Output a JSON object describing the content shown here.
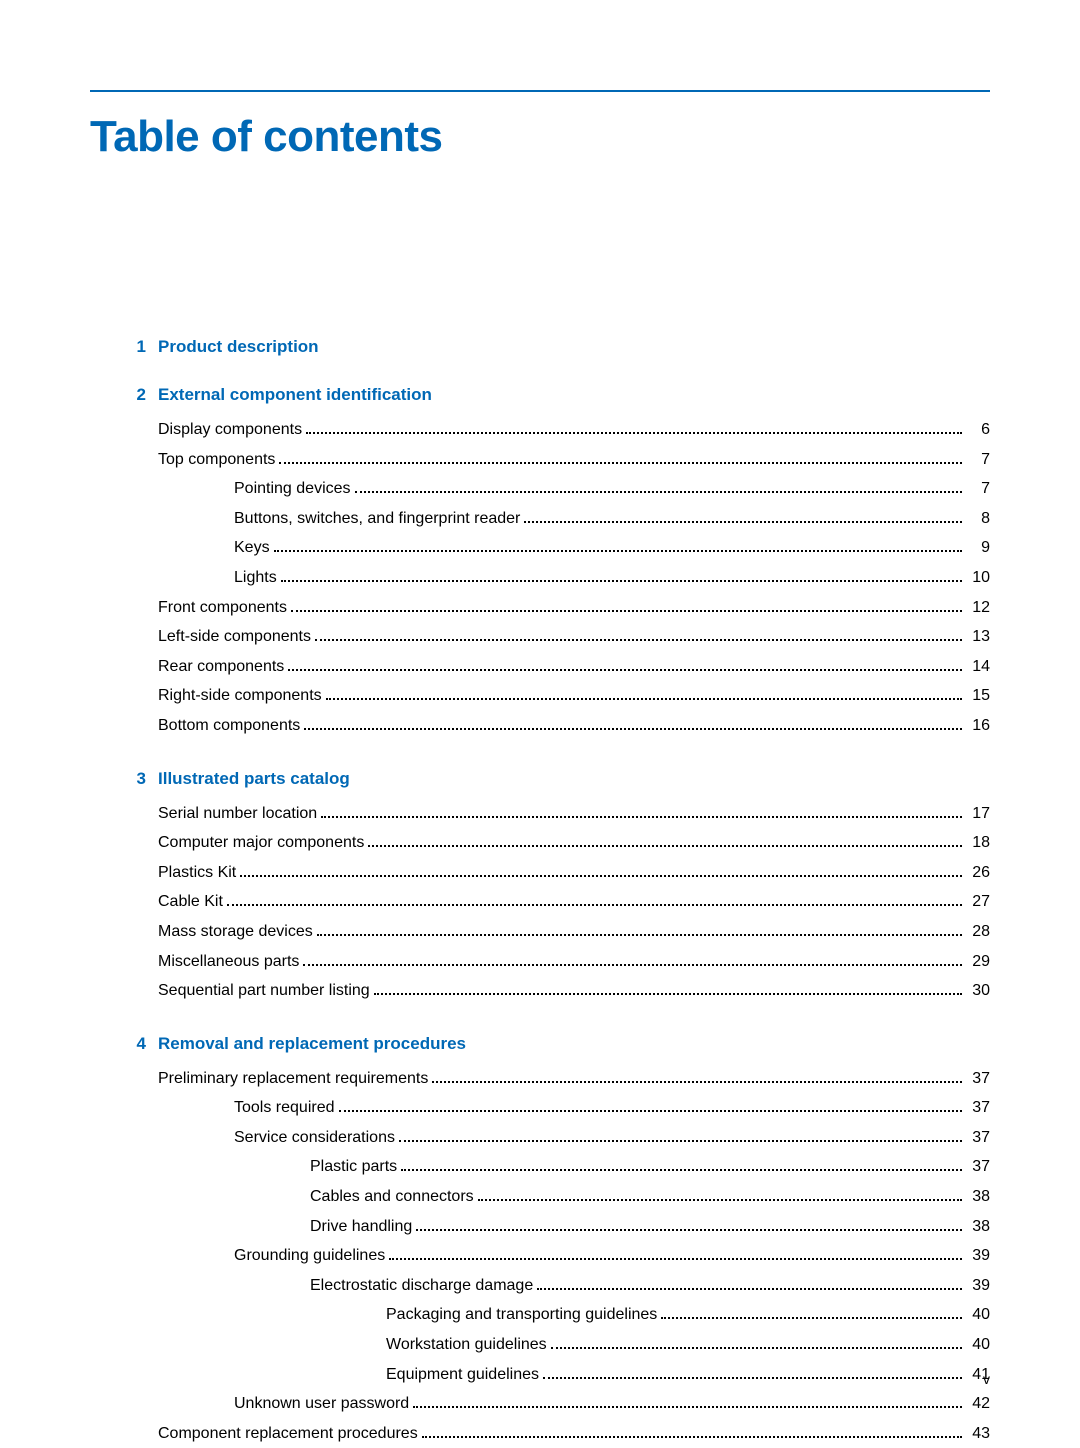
{
  "colors": {
    "primary": "#0068b5",
    "text": "#000000",
    "background": "#ffffff"
  },
  "title": "Table of contents",
  "page_number": "v",
  "sections": [
    {
      "number": "1",
      "title": "Product description",
      "entries": []
    },
    {
      "number": "2",
      "title": "External component identification",
      "entries": [
        {
          "indent": 1,
          "label": "Display components",
          "page": "6"
        },
        {
          "indent": 1,
          "label": "Top components",
          "page": "7"
        },
        {
          "indent": 2,
          "label": "Pointing devices",
          "page": "7"
        },
        {
          "indent": 2,
          "label": "Buttons, switches, and fingerprint reader",
          "page": "8"
        },
        {
          "indent": 2,
          "label": "Keys",
          "page": "9"
        },
        {
          "indent": 2,
          "label": "Lights",
          "page": "10"
        },
        {
          "indent": 1,
          "label": "Front components",
          "page": "12"
        },
        {
          "indent": 1,
          "label": "Left-side components",
          "page": "13"
        },
        {
          "indent": 1,
          "label": "Rear components",
          "page": "14"
        },
        {
          "indent": 1,
          "label": "Right-side components",
          "page": "15"
        },
        {
          "indent": 1,
          "label": "Bottom components",
          "page": "16"
        }
      ]
    },
    {
      "number": "3",
      "title": "Illustrated parts catalog",
      "entries": [
        {
          "indent": 1,
          "label": "Serial number location",
          "page": "17"
        },
        {
          "indent": 1,
          "label": "Computer major components",
          "page": "18"
        },
        {
          "indent": 1,
          "label": "Plastics Kit",
          "page": "26"
        },
        {
          "indent": 1,
          "label": "Cable Kit",
          "page": "27"
        },
        {
          "indent": 1,
          "label": "Mass storage devices",
          "page": "28"
        },
        {
          "indent": 1,
          "label": "Miscellaneous parts",
          "page": "29"
        },
        {
          "indent": 1,
          "label": "Sequential part number listing",
          "page": "30"
        }
      ]
    },
    {
      "number": "4",
      "title": "Removal and replacement procedures",
      "entries": [
        {
          "indent": 1,
          "label": "Preliminary replacement requirements",
          "page": "37"
        },
        {
          "indent": 2,
          "label": "Tools required",
          "page": "37"
        },
        {
          "indent": 2,
          "label": "Service considerations",
          "page": "37"
        },
        {
          "indent": 3,
          "label": "Plastic parts",
          "page": "37"
        },
        {
          "indent": 3,
          "label": "Cables and connectors",
          "page": "38"
        },
        {
          "indent": 3,
          "label": "Drive handling",
          "page": "38"
        },
        {
          "indent": 2,
          "label": "Grounding guidelines",
          "page": "39"
        },
        {
          "indent": 3,
          "label": "Electrostatic discharge damage",
          "page": "39"
        },
        {
          "indent": 4,
          "label": "Packaging and transporting guidelines",
          "page": "40"
        },
        {
          "indent": 4,
          "label": "Workstation guidelines",
          "page": "40"
        },
        {
          "indent": 4,
          "label": "Equipment guidelines",
          "page": "41"
        },
        {
          "indent": 2,
          "label": "Unknown user password",
          "page": "42"
        },
        {
          "indent": 1,
          "label": "Component replacement procedures",
          "page": "43"
        }
      ]
    }
  ]
}
